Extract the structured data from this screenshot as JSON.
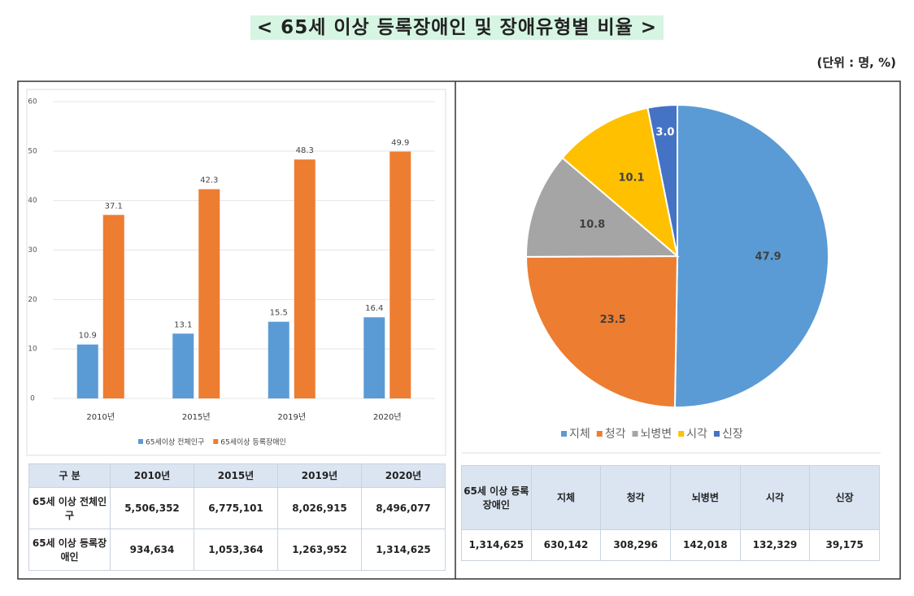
{
  "header": {
    "title": "< 65세 이상 등록장애인 및 장애유형별 비율 >",
    "unit": "(단위 : 명, %)"
  },
  "chart_data": [
    {
      "type": "bar",
      "categories": [
        "2010년",
        "2015년",
        "2019년",
        "2020년"
      ],
      "series": [
        {
          "name": "65세이상 전체인구",
          "color": "#5b9bd5",
          "values": [
            10.9,
            13.1,
            15.5,
            16.4
          ]
        },
        {
          "name": "65세이상 등록장애인",
          "color": "#ed7d31",
          "values": [
            37.1,
            42.3,
            48.3,
            49.9
          ]
        }
      ],
      "ylim": [
        0,
        60
      ],
      "yticks": [
        0,
        10,
        20,
        30,
        40,
        50,
        60
      ],
      "grid": true,
      "legend": "bottom"
    },
    {
      "type": "pie",
      "categories": [
        "지체",
        "청각",
        "뇌병변",
        "시각",
        "신장"
      ],
      "values": [
        47.9,
        23.5,
        10.8,
        10.1,
        3.0
      ],
      "value_labels": [
        "47.9",
        "23.5",
        "10.8",
        "10.1",
        "3.0"
      ],
      "colors": [
        "#5b9bd5",
        "#ed7d31",
        "#a5a5a5",
        "#ffc000",
        "#4472c4"
      ],
      "legend": "bottom"
    }
  ],
  "tables": [
    {
      "header": [
        "구 분",
        "2010년",
        "2015년",
        "2019년",
        "2020년"
      ],
      "rows": [
        [
          "65세 이상 전체인구",
          "5,506,352",
          "6,775,101",
          "8,026,915",
          "8,496,077"
        ],
        [
          "65세 이상 등록장애인",
          "934,634",
          "1,053,364",
          "1,263,952",
          "1,314,625"
        ]
      ]
    },
    {
      "header": [
        "65세 이상 등록장애인",
        "지체",
        "청각",
        "뇌병변",
        "시각",
        "신장"
      ],
      "rows": [
        [
          "1,314,625",
          "630,142",
          "308,296",
          "142,018",
          "132,329",
          "39,175"
        ]
      ]
    }
  ]
}
